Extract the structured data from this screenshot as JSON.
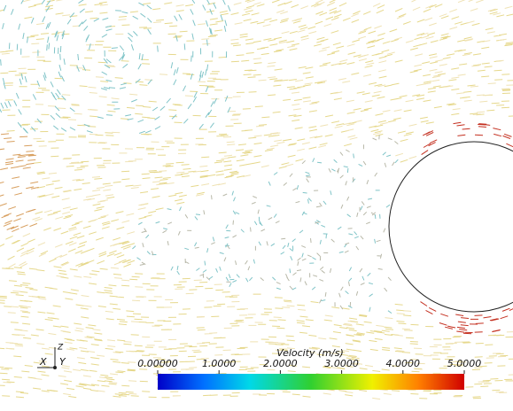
{
  "colorbar": {
    "title": "Velocity (m/s)",
    "range": [
      0,
      5
    ],
    "ticks": [
      {
        "value": 0,
        "label": "0.00000"
      },
      {
        "value": 1,
        "label": "1.0000"
      },
      {
        "value": 2,
        "label": "2.0000"
      },
      {
        "value": 3,
        "label": "3.0000"
      },
      {
        "value": 4,
        "label": "4.0000"
      },
      {
        "value": 5,
        "label": "5.0000"
      }
    ]
  },
  "axes_triad": {
    "x": "X",
    "y": "Y",
    "z": "Z"
  }
}
